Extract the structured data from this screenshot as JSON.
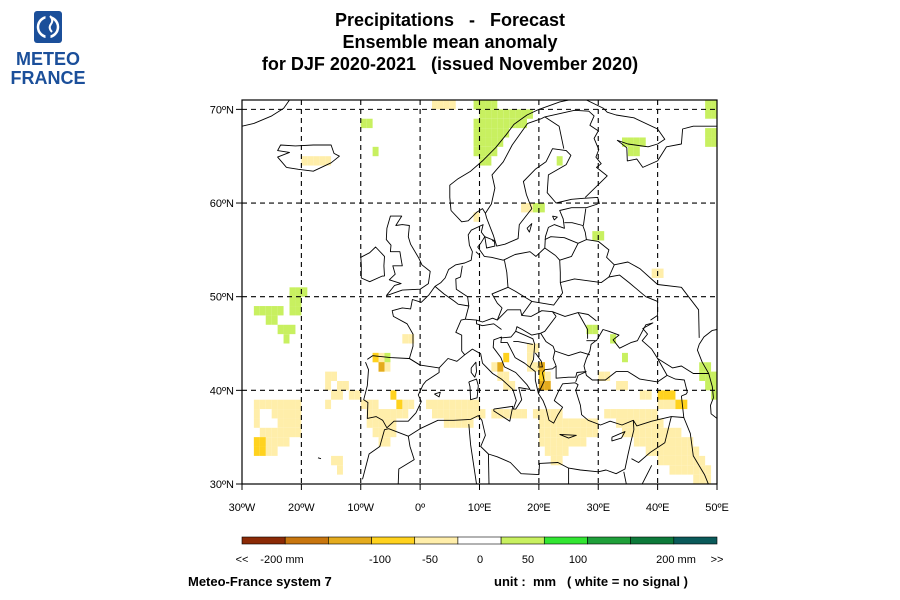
{
  "logo": {
    "line1": "METEO",
    "line2": "FRANCE",
    "color": "#1b4f9a"
  },
  "title": {
    "line1": "Precipitations   -   Forecast",
    "line2": "Ensemble mean anomaly",
    "line3": "for DJF 2020-2021   (issued November 2020)"
  },
  "map": {
    "lon_range": [
      -30,
      50
    ],
    "lat_range": [
      30,
      71
    ],
    "lat_labels": [
      "30ºN",
      "40ºN",
      "50ºN",
      "60ºN",
      "70ºN"
    ],
    "lat_values": [
      30,
      40,
      50,
      60,
      70
    ],
    "lon_labels": [
      "30ºW",
      "20ºW",
      "10ºW",
      "0º",
      "10ºE",
      "20ºE",
      "30ºE",
      "40ºE",
      "50ºE"
    ],
    "lon_values": [
      -30,
      -20,
      -10,
      0,
      10,
      20,
      30,
      40,
      50
    ],
    "grid_style": "dashed"
  },
  "legend": {
    "colors": [
      "#8b2a06",
      "#c8760e",
      "#e4ab1e",
      "#ffd21e",
      "#ffeeaa",
      "#ffffff",
      "#c8f060",
      "#32e632",
      "#1fa03a",
      "#0d7a3a",
      "#0a5a5a"
    ],
    "labels": [
      "<<",
      "-200 mm",
      "-100",
      "-50",
      "0",
      "50",
      "100",
      "200 mm",
      ">>"
    ],
    "colors_meaning": "anomaly classes"
  },
  "footer": {
    "system": "Meteo-France system 7",
    "unit": "unit :  mm   ( white = no signal )"
  },
  "anomaly_cells": {
    "light_yellow": [
      [
        -28,
        38
      ],
      [
        -27,
        38
      ],
      [
        -26,
        38
      ],
      [
        -25,
        38
      ],
      [
        -24,
        38
      ],
      [
        -23,
        38
      ],
      [
        -22,
        38
      ],
      [
        -21,
        38
      ],
      [
        -28,
        37
      ],
      [
        -25,
        37
      ],
      [
        -24,
        37
      ],
      [
        -23,
        37
      ],
      [
        -22,
        37
      ],
      [
        -21,
        37
      ],
      [
        -28,
        36
      ],
      [
        -24,
        36
      ],
      [
        -23,
        36
      ],
      [
        -22,
        36
      ],
      [
        -21,
        36
      ],
      [
        -27,
        35
      ],
      [
        -26,
        35
      ],
      [
        -25,
        35
      ],
      [
        -24,
        35
      ],
      [
        -23,
        35
      ],
      [
        -22,
        35
      ],
      [
        -21,
        35
      ],
      [
        -28,
        34
      ],
      [
        -27,
        34
      ],
      [
        -26,
        34
      ],
      [
        -25,
        34
      ],
      [
        -24,
        34
      ],
      [
        -23,
        34
      ],
      [
        -26,
        33
      ],
      [
        -25,
        33
      ],
      [
        -16,
        41
      ],
      [
        -15,
        41
      ],
      [
        -16,
        40
      ],
      [
        -14,
        40
      ],
      [
        -13,
        40
      ],
      [
        -15,
        39
      ],
      [
        -14,
        39
      ],
      [
        -16,
        38
      ],
      [
        -12,
        39
      ],
      [
        -11,
        39
      ],
      [
        -10,
        38
      ],
      [
        -9,
        38
      ],
      [
        -8,
        38
      ],
      [
        -9,
        37
      ],
      [
        -8,
        37
      ],
      [
        -7,
        37
      ],
      [
        -6,
        37
      ],
      [
        -5,
        37
      ],
      [
        -4,
        37
      ],
      [
        -3,
        37
      ],
      [
        -9,
        36
      ],
      [
        -8,
        36
      ],
      [
        -7,
        36
      ],
      [
        -6,
        36
      ],
      [
        -5,
        36
      ],
      [
        -8,
        35
      ],
      [
        -7,
        35
      ],
      [
        -6,
        35
      ],
      [
        -5,
        35
      ],
      [
        -7,
        34
      ],
      [
        -6,
        34
      ],
      [
        -15,
        32
      ],
      [
        -14,
        32
      ],
      [
        -14,
        31
      ],
      [
        -4,
        38
      ],
      [
        -3,
        38
      ],
      [
        -2,
        38
      ],
      [
        1,
        38
      ],
      [
        2,
        38
      ],
      [
        3,
        38
      ],
      [
        4,
        38
      ],
      [
        5,
        38
      ],
      [
        6,
        38
      ],
      [
        7,
        38
      ],
      [
        8,
        38
      ],
      [
        9,
        38
      ],
      [
        2,
        37
      ],
      [
        3,
        37
      ],
      [
        4,
        37
      ],
      [
        5,
        37
      ],
      [
        6,
        37
      ],
      [
        7,
        37
      ],
      [
        8,
        37
      ],
      [
        9,
        37
      ],
      [
        10,
        37
      ],
      [
        4,
        36
      ],
      [
        5,
        36
      ],
      [
        6,
        36
      ],
      [
        7,
        36
      ],
      [
        8,
        36
      ],
      [
        12,
        37
      ],
      [
        13,
        37
      ],
      [
        14,
        37
      ],
      [
        15,
        37
      ],
      [
        16,
        37
      ],
      [
        17,
        37
      ],
      [
        19,
        37
      ],
      [
        20,
        37
      ],
      [
        21,
        37
      ],
      [
        22,
        37
      ],
      [
        23,
        37
      ],
      [
        20,
        36
      ],
      [
        21,
        36
      ],
      [
        22,
        36
      ],
      [
        23,
        36
      ],
      [
        24,
        36
      ],
      [
        25,
        36
      ],
      [
        26,
        36
      ],
      [
        27,
        36
      ],
      [
        28,
        36
      ],
      [
        29,
        36
      ],
      [
        20,
        35
      ],
      [
        21,
        35
      ],
      [
        22,
        35
      ],
      [
        23,
        35
      ],
      [
        24,
        35
      ],
      [
        25,
        35
      ],
      [
        26,
        35
      ],
      [
        27,
        35
      ],
      [
        28,
        35
      ],
      [
        29,
        35
      ],
      [
        20,
        34
      ],
      [
        21,
        34
      ],
      [
        22,
        34
      ],
      [
        23,
        34
      ],
      [
        24,
        34
      ],
      [
        25,
        34
      ],
      [
        26,
        34
      ],
      [
        27,
        34
      ],
      [
        21,
        33
      ],
      [
        22,
        33
      ],
      [
        23,
        33
      ],
      [
        24,
        33
      ],
      [
        22,
        32
      ],
      [
        23,
        32
      ],
      [
        31,
        37
      ],
      [
        32,
        37
      ],
      [
        33,
        37
      ],
      [
        34,
        37
      ],
      [
        35,
        37
      ],
      [
        36,
        37
      ],
      [
        37,
        37
      ],
      [
        38,
        37
      ],
      [
        39,
        37
      ],
      [
        33,
        36
      ],
      [
        34,
        36
      ],
      [
        35,
        36
      ],
      [
        36,
        36
      ],
      [
        37,
        36
      ],
      [
        38,
        36
      ],
      [
        39,
        36
      ],
      [
        40,
        36
      ],
      [
        34,
        35
      ],
      [
        35,
        35
      ],
      [
        36,
        35
      ],
      [
        37,
        35
      ],
      [
        38,
        35
      ],
      [
        39,
        35
      ],
      [
        40,
        35
      ],
      [
        41,
        35
      ],
      [
        42,
        35
      ],
      [
        43,
        35
      ],
      [
        36,
        34
      ],
      [
        37,
        34
      ],
      [
        38,
        34
      ],
      [
        39,
        34
      ],
      [
        40,
        34
      ],
      [
        41,
        34
      ],
      [
        42,
        34
      ],
      [
        43,
        34
      ],
      [
        44,
        34
      ],
      [
        45,
        34
      ],
      [
        38,
        33
      ],
      [
        39,
        33
      ],
      [
        40,
        33
      ],
      [
        41,
        33
      ],
      [
        42,
        33
      ],
      [
        43,
        33
      ],
      [
        44,
        33
      ],
      [
        45,
        33
      ],
      [
        46,
        33
      ],
      [
        40,
        32
      ],
      [
        41,
        32
      ],
      [
        42,
        32
      ],
      [
        43,
        32
      ],
      [
        44,
        32
      ],
      [
        45,
        32
      ],
      [
        46,
        32
      ],
      [
        47,
        32
      ],
      [
        42,
        31
      ],
      [
        43,
        31
      ],
      [
        44,
        31
      ],
      [
        45,
        31
      ],
      [
        46,
        31
      ],
      [
        47,
        31
      ],
      [
        48,
        31
      ],
      [
        46,
        30
      ],
      [
        47,
        30
      ],
      [
        48,
        30
      ],
      [
        40,
        38
      ],
      [
        41,
        38
      ],
      [
        42,
        38
      ],
      [
        43,
        38
      ],
      [
        -8,
        43
      ],
      [
        -7,
        43
      ],
      [
        -7,
        42
      ],
      [
        -6,
        42
      ],
      [
        -3,
        45
      ],
      [
        -2,
        45
      ],
      [
        12,
        42
      ],
      [
        13,
        42
      ],
      [
        13,
        41
      ],
      [
        14,
        41
      ],
      [
        14,
        40
      ],
      [
        15,
        40
      ],
      [
        18,
        42
      ],
      [
        19,
        42
      ],
      [
        20,
        41
      ],
      [
        20,
        40
      ],
      [
        21,
        41
      ],
      [
        18,
        44
      ],
      [
        19,
        44
      ],
      [
        18,
        43
      ],
      [
        30,
        41
      ],
      [
        31,
        41
      ],
      [
        33,
        40
      ],
      [
        34,
        40
      ],
      [
        37,
        39
      ],
      [
        38,
        39
      ],
      [
        39,
        52
      ],
      [
        40,
        52
      ],
      [
        -20,
        64
      ],
      [
        -19,
        64
      ],
      [
        -18,
        64
      ],
      [
        -17,
        64
      ],
      [
        -16,
        64
      ],
      [
        1,
        71
      ],
      [
        2,
        71
      ],
      [
        3,
        71
      ],
      [
        2,
        70
      ],
      [
        3,
        70
      ],
      [
        4,
        70
      ],
      [
        5,
        70
      ],
      [
        17,
        59
      ],
      [
        18,
        59
      ],
      [
        9,
        58
      ]
    ],
    "green": [
      [
        10,
        69
      ],
      [
        11,
        69
      ],
      [
        12,
        69
      ],
      [
        13,
        69
      ],
      [
        14,
        69
      ],
      [
        15,
        69
      ],
      [
        16,
        69
      ],
      [
        17,
        69
      ],
      [
        18,
        69
      ],
      [
        9,
        68
      ],
      [
        10,
        68
      ],
      [
        11,
        68
      ],
      [
        12,
        68
      ],
      [
        13,
        68
      ],
      [
        14,
        68
      ],
      [
        15,
        68
      ],
      [
        16,
        68
      ],
      [
        17,
        68
      ],
      [
        9,
        67
      ],
      [
        10,
        67
      ],
      [
        11,
        67
      ],
      [
        12,
        67
      ],
      [
        13,
        67
      ],
      [
        14,
        67
      ],
      [
        9,
        66
      ],
      [
        10,
        66
      ],
      [
        11,
        66
      ],
      [
        12,
        66
      ],
      [
        13,
        66
      ],
      [
        9,
        65
      ],
      [
        10,
        65
      ],
      [
        11,
        65
      ],
      [
        12,
        65
      ],
      [
        10,
        64
      ],
      [
        11,
        64
      ],
      [
        9,
        70
      ],
      [
        10,
        70
      ],
      [
        11,
        70
      ],
      [
        12,
        70
      ],
      [
        -10,
        68
      ],
      [
        -9,
        68
      ],
      [
        -8,
        65
      ],
      [
        34,
        66
      ],
      [
        35,
        66
      ],
      [
        36,
        66
      ],
      [
        37,
        66
      ],
      [
        35,
        65
      ],
      [
        36,
        65
      ],
      [
        48,
        71
      ],
      [
        49,
        71
      ],
      [
        48,
        70
      ],
      [
        49,
        70
      ],
      [
        48,
        69
      ],
      [
        49,
        69
      ],
      [
        48,
        67
      ],
      [
        49,
        67
      ],
      [
        48,
        66
      ],
      [
        49,
        66
      ],
      [
        19,
        59
      ],
      [
        20,
        59
      ],
      [
        29,
        56
      ],
      [
        30,
        56
      ],
      [
        -22,
        50
      ],
      [
        -21,
        50
      ],
      [
        -20,
        50
      ],
      [
        -22,
        49
      ],
      [
        -21,
        49
      ],
      [
        -22,
        48
      ],
      [
        -21,
        48
      ],
      [
        -28,
        48
      ],
      [
        -27,
        48
      ],
      [
        -26,
        48
      ],
      [
        -25,
        48
      ],
      [
        -24,
        48
      ],
      [
        -26,
        47
      ],
      [
        -25,
        47
      ],
      [
        -24,
        46
      ],
      [
        -23,
        46
      ],
      [
        -22,
        46
      ],
      [
        -23,
        45
      ],
      [
        -6,
        43
      ],
      [
        28,
        46
      ],
      [
        29,
        46
      ],
      [
        32,
        45
      ],
      [
        34,
        43
      ],
      [
        47,
        42
      ],
      [
        48,
        42
      ],
      [
        47,
        41
      ],
      [
        48,
        41
      ],
      [
        49,
        41
      ],
      [
        48,
        40
      ],
      [
        49,
        40
      ],
      [
        49,
        39
      ],
      [
        23,
        64
      ]
    ],
    "yellow": [
      [
        -28,
        34
      ],
      [
        -27,
        34
      ],
      [
        -28,
        33
      ],
      [
        -27,
        33
      ],
      [
        -5,
        39
      ],
      [
        -4,
        38
      ],
      [
        -8,
        43
      ],
      [
        -7,
        42
      ],
      [
        20,
        42
      ],
      [
        20,
        41
      ],
      [
        14,
        43
      ],
      [
        41,
        39
      ],
      [
        42,
        39
      ],
      [
        43,
        38
      ],
      [
        44,
        38
      ],
      [
        40,
        39
      ]
    ],
    "orange": [
      [
        13,
        42
      ],
      [
        20,
        42
      ],
      [
        20,
        40
      ],
      [
        21,
        40
      ],
      [
        -7,
        42
      ]
    ]
  }
}
